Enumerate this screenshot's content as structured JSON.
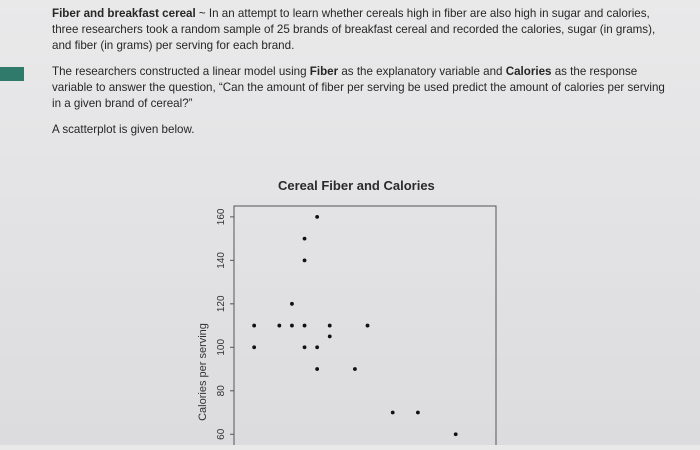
{
  "problem": {
    "intro_bold": "Fiber and breakfast cereal",
    "intro_rest": " ~ In an attempt to learn whether cereals high in fiber are also high in sugar and calories, three researchers took a random sample of 25 brands of breakfast cereal and recorded the calories, sugar (in grams), and fiber (in grams) per serving for each brand.",
    "model_a": "The researchers constructed a linear model using ",
    "model_fiber": "Fiber",
    "model_b": " as the explanatory variable and ",
    "model_calories": "Calories",
    "model_c": " as the response variable to answer the question, “Can the amount of fiber per serving be used predict the amount of calories per serving in a given brand of cereal?”",
    "scatter_note": "A scatterplot is given below."
  },
  "colors": {
    "accent_tab": "#2f7a6a",
    "point": "#111111",
    "axis": "#555555"
  },
  "chart_data": {
    "type": "scatter",
    "title": "Cereal Fiber and Calories",
    "xlabel": "",
    "ylabel": "Calories per serving",
    "ylim": [
      50,
      165
    ],
    "yticks": [
      "60",
      "80",
      "100",
      "120",
      "140",
      "160"
    ],
    "grid": false,
    "points": [
      {
        "x": 0,
        "y": 100
      },
      {
        "x": 0,
        "y": 110
      },
      {
        "x": 1,
        "y": 110
      },
      {
        "x": 1.5,
        "y": 110
      },
      {
        "x": 1.5,
        "y": 120
      },
      {
        "x": 2,
        "y": 150
      },
      {
        "x": 2,
        "y": 140
      },
      {
        "x": 2,
        "y": 110
      },
      {
        "x": 2,
        "y": 100
      },
      {
        "x": 2.5,
        "y": 100
      },
      {
        "x": 2.5,
        "y": 160
      },
      {
        "x": 2.5,
        "y": 90
      },
      {
        "x": 3,
        "y": 110
      },
      {
        "x": 3,
        "y": 105
      },
      {
        "x": 4,
        "y": 90
      },
      {
        "x": 4.5,
        "y": 110
      },
      {
        "x": 5.5,
        "y": 70
      },
      {
        "x": 6.5,
        "y": 70
      },
      {
        "x": 8,
        "y": 60
      }
    ]
  }
}
